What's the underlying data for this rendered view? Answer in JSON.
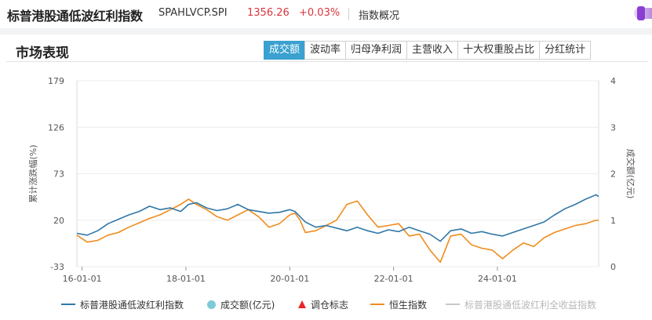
{
  "header": {
    "index_name": "标普港股通低波红利指数",
    "code": "SPAHLVCP.SPI",
    "price": "1356.26",
    "change": "+0.03%",
    "overview_link": "指数概况"
  },
  "panel": {
    "title": "市场表现",
    "tabs": [
      {
        "label": "成交额",
        "active": true
      },
      {
        "label": "波动率",
        "active": false
      },
      {
        "label": "归母净利润",
        "active": false
      },
      {
        "label": "主营收入",
        "active": false
      },
      {
        "label": "十大权重股占比",
        "active": false
      },
      {
        "label": "分红统计",
        "active": false
      }
    ]
  },
  "colors": {
    "index_line": "#2f77a6",
    "hsi_line": "#f08c1e",
    "volume_marker": "#7fc9d9",
    "rebalance_marker": "#e8262c",
    "total_return_line": "#c8c8c8",
    "active_tab": "#3ba1d0"
  },
  "chart_data": {
    "type": "line",
    "ylabel": "累计涨跌幅(%)",
    "ylabel_right": "成交额(亿元)",
    "x_ticks": [
      "16-01-01",
      "18-01-01",
      "20-01-01",
      "22-01-01",
      "24-01-01"
    ],
    "x_tick_values": [
      2016.0,
      2018.0,
      2020.0,
      2022.0,
      2024.0
    ],
    "x_range": [
      2015.9,
      2025.95
    ],
    "y_ticks": [
      "179",
      "126",
      "73",
      "20",
      "-33"
    ],
    "ylim": [
      -33,
      179
    ],
    "y2_ticks": [
      "4",
      "3",
      "2",
      "1",
      "0"
    ],
    "y2lim": [
      0,
      4
    ],
    "grid": true,
    "legend_position": "bottom",
    "series": [
      {
        "name": "标普港股通低波红利指数",
        "x": [
          2015.9,
          2016.1,
          2016.3,
          2016.5,
          2016.7,
          2016.9,
          2017.1,
          2017.3,
          2017.5,
          2017.7,
          2017.9,
          2018.05,
          2018.2,
          2018.4,
          2018.6,
          2018.8,
          2019.0,
          2019.2,
          2019.4,
          2019.6,
          2019.8,
          2020.0,
          2020.1,
          2020.2,
          2020.3,
          2020.5,
          2020.7,
          2020.9,
          2021.1,
          2021.3,
          2021.5,
          2021.7,
          2021.9,
          2022.1,
          2022.3,
          2022.5,
          2022.7,
          2022.9,
          2023.1,
          2023.3,
          2023.5,
          2023.7,
          2023.9,
          2024.1,
          2024.3,
          2024.5,
          2024.7,
          2024.9,
          2025.1,
          2025.3,
          2025.5,
          2025.7,
          2025.9,
          2025.95
        ],
        "values": [
          5,
          3,
          8,
          16,
          21,
          26,
          30,
          36,
          32,
          34,
          30,
          38,
          40,
          34,
          31,
          33,
          38,
          32,
          30,
          28,
          29,
          32,
          30,
          24,
          18,
          12,
          14,
          11,
          8,
          12,
          8,
          5,
          9,
          7,
          12,
          8,
          4,
          -4,
          8,
          10,
          5,
          7,
          4,
          2,
          6,
          10,
          14,
          18,
          26,
          33,
          38,
          44,
          49,
          47
        ]
      },
      {
        "name": "恒生指数",
        "x": [
          2015.9,
          2016.1,
          2016.3,
          2016.5,
          2016.7,
          2016.9,
          2017.1,
          2017.3,
          2017.5,
          2017.7,
          2017.9,
          2018.05,
          2018.2,
          2018.4,
          2018.6,
          2018.8,
          2019.0,
          2019.2,
          2019.4,
          2019.6,
          2019.8,
          2020.0,
          2020.1,
          2020.2,
          2020.3,
          2020.5,
          2020.7,
          2020.9,
          2021.1,
          2021.3,
          2021.5,
          2021.7,
          2021.9,
          2022.1,
          2022.3,
          2022.5,
          2022.7,
          2022.9,
          2023.1,
          2023.3,
          2023.5,
          2023.7,
          2023.9,
          2024.1,
          2024.3,
          2024.5,
          2024.7,
          2024.9,
          2025.1,
          2025.3,
          2025.5,
          2025.7,
          2025.9,
          2025.95
        ],
        "values": [
          3,
          -5,
          -3,
          3,
          6,
          12,
          17,
          22,
          26,
          32,
          38,
          44,
          38,
          32,
          24,
          20,
          26,
          32,
          24,
          12,
          16,
          26,
          28,
          20,
          6,
          8,
          14,
          20,
          38,
          42,
          26,
          12,
          14,
          16,
          2,
          4,
          -14,
          -28,
          2,
          4,
          -8,
          -12,
          -14,
          -24,
          -14,
          -6,
          -10,
          0,
          6,
          10,
          14,
          16,
          20,
          20
        ]
      }
    ]
  },
  "legend": {
    "items": [
      {
        "label": "标普港股通低波红利指数"
      },
      {
        "label": "成交额(亿元)"
      },
      {
        "label": "调仓标志"
      },
      {
        "label": "恒生指数"
      },
      {
        "label": "标普港股通低波红利全收益指数"
      }
    ]
  }
}
